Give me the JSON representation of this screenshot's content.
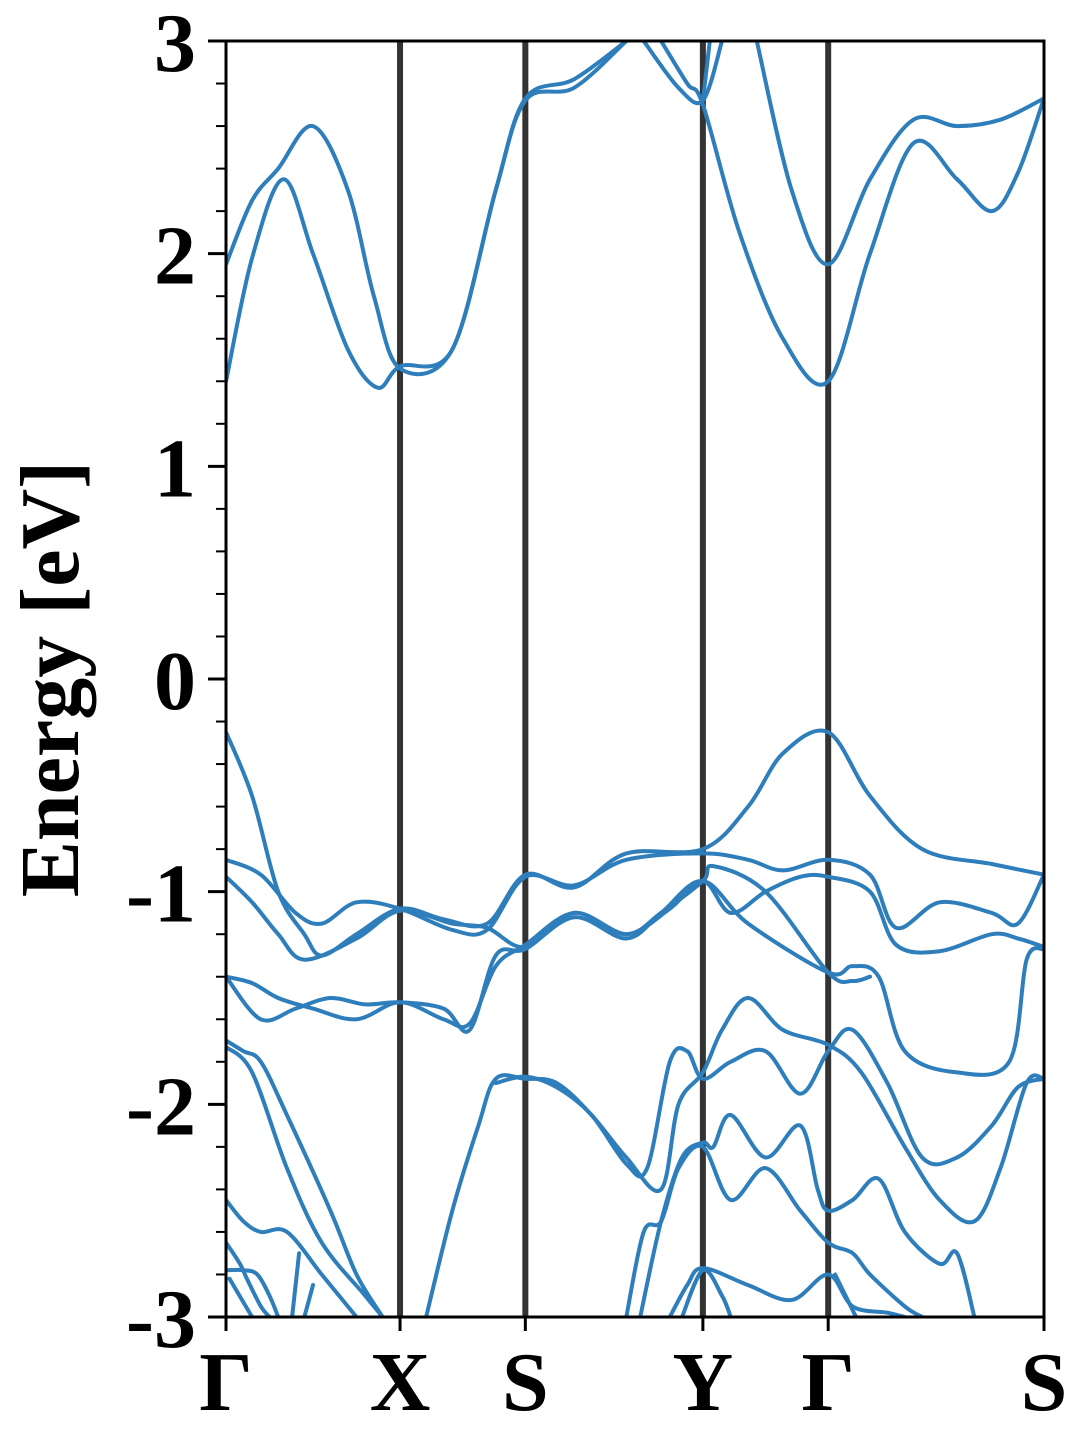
{
  "chart_data": {
    "type": "line",
    "title": "",
    "xlabel": "",
    "ylabel": "Energy [eV]",
    "ylim": [
      -3,
      3
    ],
    "xlim": [
      0,
      4.7
    ],
    "yticks": [
      {
        "value": 3,
        "label": "3"
      },
      {
        "value": 2,
        "label": "2"
      },
      {
        "value": 1,
        "label": "1"
      },
      {
        "value": 0,
        "label": "0"
      },
      {
        "value": -1,
        "label": "-1"
      },
      {
        "value": -2,
        "label": "-2"
      },
      {
        "value": -3,
        "label": "-3"
      }
    ],
    "kpoints": [
      {
        "position": 0.0,
        "label": "Γ"
      },
      {
        "position": 1.0,
        "label": "X"
      },
      {
        "position": 1.72,
        "label": "S"
      },
      {
        "position": 2.74,
        "label": "Y"
      },
      {
        "position": 3.46,
        "label": "Γ"
      },
      {
        "position": 4.7,
        "label": "S"
      }
    ],
    "grid": false,
    "legend": "none",
    "line_color": "#2e7ebc",
    "kline_color": "#333333",
    "series": [
      {
        "points": [
          [
            0,
            1.4
          ],
          [
            0.15,
            1.98
          ],
          [
            0.33,
            2.35
          ],
          [
            0.5,
            2.0
          ],
          [
            0.7,
            1.55
          ],
          [
            0.87,
            1.37
          ],
          [
            1.0,
            1.47
          ],
          [
            1.3,
            1.55
          ],
          [
            1.55,
            2.3
          ],
          [
            1.72,
            2.73
          ],
          [
            2.0,
            2.82
          ],
          [
            2.3,
            3.05
          ]
        ]
      },
      {
        "points": [
          [
            0,
            1.95
          ],
          [
            0.15,
            2.25
          ],
          [
            0.3,
            2.4
          ],
          [
            0.5,
            2.6
          ],
          [
            0.7,
            2.3
          ],
          [
            0.85,
            1.8
          ],
          [
            1.0,
            1.46
          ],
          [
            1.3,
            1.55
          ],
          [
            1.55,
            2.3
          ],
          [
            1.72,
            2.72
          ],
          [
            2.0,
            2.78
          ],
          [
            2.3,
            3.05
          ]
        ]
      },
      {
        "points": [
          [
            2.4,
            3.05
          ],
          [
            2.6,
            2.78
          ],
          [
            2.74,
            2.72
          ],
          [
            2.85,
            3.05
          ]
        ]
      },
      {
        "points": [
          [
            2.5,
            3.05
          ],
          [
            2.65,
            2.8
          ],
          [
            2.74,
            2.7
          ],
          [
            2.95,
            2.1
          ],
          [
            3.2,
            1.6
          ],
          [
            3.46,
            1.4
          ],
          [
            3.7,
            2.0
          ],
          [
            3.95,
            2.52
          ],
          [
            4.2,
            2.35
          ],
          [
            4.4,
            2.2
          ],
          [
            4.55,
            2.38
          ],
          [
            4.7,
            2.73
          ]
        ]
      },
      {
        "points": [
          [
            2.74,
            2.72
          ],
          [
            2.78,
            3.05
          ]
        ]
      },
      {
        "points": [
          [
            3.05,
            3.05
          ],
          [
            3.25,
            2.3
          ],
          [
            3.46,
            1.95
          ],
          [
            3.7,
            2.35
          ],
          [
            3.95,
            2.63
          ],
          [
            4.2,
            2.6
          ],
          [
            4.45,
            2.63
          ],
          [
            4.7,
            2.73
          ]
        ]
      },
      {
        "points": [
          [
            0,
            -0.25
          ],
          [
            0.15,
            -0.55
          ],
          [
            0.3,
            -1.0
          ],
          [
            0.45,
            -1.2
          ],
          [
            0.55,
            -1.3
          ],
          [
            0.75,
            -1.2
          ],
          [
            1.0,
            -1.08
          ],
          [
            1.25,
            -1.13
          ],
          [
            1.5,
            -1.15
          ],
          [
            1.72,
            -0.92
          ],
          [
            2.0,
            -0.98
          ],
          [
            2.3,
            -0.82
          ],
          [
            2.74,
            -0.8
          ],
          [
            3.0,
            -0.6
          ],
          [
            3.2,
            -0.35
          ],
          [
            3.46,
            -0.25
          ],
          [
            3.7,
            -0.55
          ],
          [
            4.0,
            -0.8
          ],
          [
            4.4,
            -0.87
          ],
          [
            4.7,
            -0.92
          ]
        ]
      },
      {
        "points": [
          [
            0,
            -0.85
          ],
          [
            0.2,
            -0.92
          ],
          [
            0.4,
            -1.1
          ],
          [
            0.55,
            -1.15
          ],
          [
            0.75,
            -1.05
          ],
          [
            1.0,
            -1.08
          ],
          [
            1.3,
            -1.18
          ],
          [
            1.5,
            -1.18
          ],
          [
            1.72,
            -0.93
          ],
          [
            2.0,
            -0.97
          ],
          [
            2.3,
            -0.85
          ],
          [
            2.74,
            -0.82
          ],
          [
            3.0,
            -0.85
          ],
          [
            3.2,
            -0.9
          ],
          [
            3.46,
            -0.85
          ],
          [
            3.7,
            -0.92
          ],
          [
            3.85,
            -1.17
          ],
          [
            4.1,
            -1.05
          ],
          [
            4.4,
            -1.1
          ],
          [
            4.55,
            -1.15
          ],
          [
            4.7,
            -0.92
          ]
        ]
      },
      {
        "points": [
          [
            0,
            -0.93
          ],
          [
            0.15,
            -1.05
          ],
          [
            0.3,
            -1.2
          ],
          [
            0.45,
            -1.32
          ],
          [
            0.75,
            -1.22
          ],
          [
            1.0,
            -1.09
          ],
          [
            1.3,
            -1.15
          ],
          [
            1.5,
            -1.17
          ],
          [
            1.72,
            -1.26
          ],
          [
            2.0,
            -1.1
          ],
          [
            2.3,
            -1.2
          ],
          [
            2.55,
            -1.08
          ],
          [
            2.74,
            -0.95
          ],
          [
            2.9,
            -1.1
          ],
          [
            3.1,
            -1.0
          ],
          [
            3.3,
            -0.93
          ],
          [
            3.46,
            -0.93
          ],
          [
            3.7,
            -1.0
          ],
          [
            3.85,
            -1.25
          ],
          [
            4.1,
            -1.28
          ],
          [
            4.4,
            -1.2
          ],
          [
            4.55,
            -1.22
          ],
          [
            4.7,
            -1.26
          ]
        ]
      },
      {
        "points": [
          [
            0,
            -1.4
          ],
          [
            0.2,
            -1.6
          ],
          [
            0.4,
            -1.55
          ],
          [
            0.6,
            -1.5
          ],
          [
            0.8,
            -1.53
          ],
          [
            1.0,
            -1.52
          ],
          [
            1.25,
            -1.55
          ],
          [
            1.4,
            -1.65
          ],
          [
            1.55,
            -1.3
          ],
          [
            1.72,
            -1.27
          ],
          [
            2.0,
            -1.12
          ],
          [
            2.3,
            -1.22
          ],
          [
            2.5,
            -1.1
          ],
          [
            2.74,
            -0.95
          ],
          [
            3.0,
            -1.15
          ],
          [
            3.46,
            -1.38
          ],
          [
            3.6,
            -1.35
          ],
          [
            3.75,
            -1.4
          ],
          [
            3.9,
            -1.75
          ],
          [
            4.2,
            -1.85
          ],
          [
            4.5,
            -1.8
          ],
          [
            4.6,
            -1.32
          ],
          [
            4.7,
            -1.27
          ]
        ]
      },
      {
        "points": [
          [
            0,
            -1.4
          ],
          [
            0.15,
            -1.43
          ],
          [
            0.3,
            -1.5
          ],
          [
            0.5,
            -1.55
          ],
          [
            0.75,
            -1.6
          ],
          [
            1.0,
            -1.52
          ],
          [
            1.25,
            -1.6
          ],
          [
            1.4,
            -1.62
          ],
          [
            1.55,
            -1.35
          ],
          [
            1.72,
            -1.25
          ],
          [
            2.0,
            -1.1
          ],
          [
            2.3,
            -1.2
          ],
          [
            2.5,
            -1.1
          ],
          [
            2.74,
            -0.95
          ],
          [
            2.8,
            -0.88
          ],
          [
            3.1,
            -1.0
          ],
          [
            3.46,
            -1.38
          ],
          [
            3.6,
            -1.42
          ],
          [
            3.7,
            -1.4
          ]
        ]
      },
      {
        "points": [
          [
            0,
            -1.7
          ],
          [
            0.1,
            -1.75
          ],
          [
            0.2,
            -1.8
          ],
          [
            0.35,
            -2.05
          ],
          [
            0.6,
            -2.5
          ],
          [
            0.75,
            -2.8
          ],
          [
            0.9,
            -3.05
          ]
        ]
      },
      {
        "points": [
          [
            0,
            -1.73
          ],
          [
            0.15,
            -1.85
          ],
          [
            0.35,
            -2.3
          ],
          [
            0.55,
            -2.65
          ],
          [
            0.8,
            -2.9
          ],
          [
            0.9,
            -3.05
          ]
        ]
      },
      {
        "points": [
          [
            1.15,
            -3.05
          ],
          [
            1.3,
            -2.5
          ],
          [
            1.45,
            -2.1
          ],
          [
            1.55,
            -1.88
          ],
          [
            1.72,
            -1.88
          ],
          [
            1.9,
            -1.9
          ],
          [
            2.1,
            -2.05
          ],
          [
            2.3,
            -2.25
          ],
          [
            2.5,
            -2.4
          ],
          [
            2.6,
            -2.0
          ],
          [
            2.74,
            -1.85
          ],
          [
            2.85,
            -1.65
          ],
          [
            3.0,
            -1.5
          ],
          [
            3.2,
            -1.65
          ],
          [
            3.46,
            -1.72
          ],
          [
            3.65,
            -1.85
          ],
          [
            3.9,
            -2.2
          ],
          [
            4.1,
            -2.45
          ],
          [
            4.3,
            -2.55
          ],
          [
            4.45,
            -2.3
          ],
          [
            4.6,
            -1.9
          ],
          [
            4.7,
            -1.88
          ]
        ]
      },
      {
        "points": [
          [
            1.55,
            -1.9
          ],
          [
            1.72,
            -1.87
          ],
          [
            1.9,
            -1.92
          ],
          [
            2.1,
            -2.05
          ],
          [
            2.3,
            -2.28
          ],
          [
            2.42,
            -2.3
          ],
          [
            2.55,
            -1.8
          ],
          [
            2.65,
            -1.75
          ],
          [
            2.74,
            -1.88
          ],
          [
            2.9,
            -1.8
          ],
          [
            3.1,
            -1.75
          ],
          [
            3.3,
            -1.95
          ],
          [
            3.46,
            -1.75
          ],
          [
            3.6,
            -1.65
          ],
          [
            3.8,
            -1.9
          ],
          [
            4.0,
            -2.25
          ],
          [
            4.2,
            -2.25
          ],
          [
            4.4,
            -2.1
          ],
          [
            4.55,
            -1.92
          ],
          [
            4.7,
            -1.88
          ]
        ]
      },
      {
        "points": [
          [
            2.3,
            -3.05
          ],
          [
            2.4,
            -2.6
          ],
          [
            2.5,
            -2.55
          ],
          [
            2.6,
            -2.3
          ],
          [
            2.74,
            -2.2
          ],
          [
            2.9,
            -2.45
          ],
          [
            3.1,
            -2.3
          ],
          [
            3.3,
            -2.5
          ],
          [
            3.46,
            -2.65
          ],
          [
            3.6,
            -2.7
          ],
          [
            3.7,
            -2.8
          ],
          [
            3.9,
            -2.95
          ],
          [
            4.0,
            -3.05
          ]
        ]
      },
      {
        "points": [
          [
            2.38,
            -3.05
          ],
          [
            2.5,
            -2.55
          ],
          [
            2.62,
            -2.25
          ],
          [
            2.74,
            -2.18
          ],
          [
            2.8,
            -2.2
          ],
          [
            2.9,
            -2.05
          ],
          [
            3.1,
            -2.25
          ],
          [
            3.3,
            -2.1
          ],
          [
            3.4,
            -2.4
          ],
          [
            3.46,
            -2.5
          ],
          [
            3.6,
            -2.45
          ],
          [
            3.75,
            -2.35
          ],
          [
            3.9,
            -2.6
          ],
          [
            4.1,
            -2.75
          ],
          [
            4.2,
            -2.7
          ],
          [
            4.3,
            -3.05
          ]
        ]
      },
      {
        "points": [
          [
            2.55,
            -3.05
          ],
          [
            2.65,
            -2.85
          ],
          [
            2.74,
            -2.77
          ],
          [
            3.0,
            -2.85
          ],
          [
            3.25,
            -2.92
          ],
          [
            3.46,
            -2.8
          ],
          [
            3.6,
            -2.95
          ],
          [
            3.8,
            -2.98
          ],
          [
            3.9,
            -3.05
          ]
        ]
      },
      {
        "points": [
          [
            2.62,
            -3.05
          ],
          [
            2.74,
            -2.78
          ],
          [
            2.85,
            -2.9
          ],
          [
            2.9,
            -3.05
          ]
        ]
      },
      {
        "points": [
          [
            3.5,
            -2.8
          ],
          [
            3.62,
            -3.05
          ]
        ]
      },
      {
        "points": [
          [
            0,
            -2.45
          ],
          [
            0.1,
            -2.55
          ],
          [
            0.2,
            -2.6
          ],
          [
            0.35,
            -2.6
          ],
          [
            0.55,
            -2.8
          ],
          [
            0.7,
            -2.95
          ],
          [
            0.75,
            -3.05
          ]
        ]
      },
      {
        "points": [
          [
            0,
            -2.65
          ],
          [
            0.08,
            -2.75
          ],
          [
            0.12,
            -2.82
          ],
          [
            0.2,
            -2.95
          ],
          [
            0.25,
            -3.05
          ]
        ]
      },
      {
        "points": [
          [
            0,
            -2.78
          ],
          [
            0.1,
            -2.78
          ],
          [
            0.18,
            -2.8
          ],
          [
            0.25,
            -2.9
          ],
          [
            0.3,
            -3.05
          ]
        ]
      },
      {
        "points": [
          [
            0.38,
            -3.05
          ],
          [
            0.42,
            -2.7
          ]
        ]
      },
      {
        "points": [
          [
            0.45,
            -3.05
          ],
          [
            0.5,
            -2.85
          ]
        ]
      },
      {
        "points": [
          [
            0.02,
            -2.82
          ],
          [
            0.15,
            -3.05
          ]
        ]
      }
    ]
  }
}
